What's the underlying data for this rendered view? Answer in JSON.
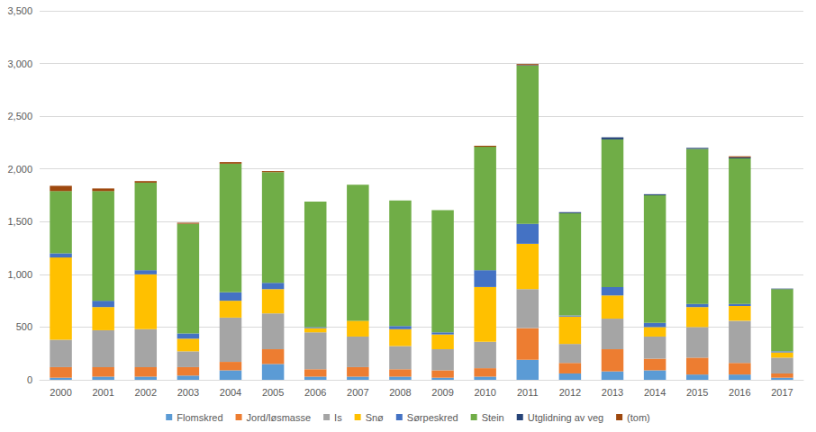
{
  "chart_data": {
    "type": "bar",
    "stacked": true,
    "grid": true,
    "legend": "bottom",
    "categories": [
      "2000",
      "2001",
      "2002",
      "2003",
      "2004",
      "2005",
      "2006",
      "2007",
      "2008",
      "2009",
      "2010",
      "2011",
      "2012",
      "2013",
      "2014",
      "2015",
      "2016",
      "2017"
    ],
    "ylim": [
      0,
      3500
    ],
    "yticks": [
      0,
      500,
      1000,
      1500,
      2000,
      2500,
      3000,
      3500
    ],
    "series": [
      {
        "name": "Flomskred",
        "color": "#5B9BD5",
        "values": [
          20,
          30,
          30,
          40,
          90,
          150,
          30,
          30,
          30,
          20,
          30,
          190,
          60,
          80,
          90,
          50,
          50,
          20
        ]
      },
      {
        "name": "Jord/løsmasse",
        "color": "#ED7D31",
        "values": [
          100,
          90,
          90,
          80,
          80,
          140,
          70,
          90,
          70,
          70,
          80,
          300,
          100,
          210,
          110,
          160,
          110,
          40
        ]
      },
      {
        "name": "Is",
        "color": "#A5A5A5",
        "values": [
          260,
          350,
          360,
          150,
          420,
          340,
          350,
          290,
          220,
          200,
          250,
          370,
          180,
          290,
          210,
          290,
          400,
          150
        ]
      },
      {
        "name": "Snø",
        "color": "#FFC000",
        "values": [
          780,
          220,
          520,
          120,
          160,
          230,
          40,
          150,
          160,
          140,
          520,
          430,
          260,
          220,
          90,
          190,
          140,
          50
        ]
      },
      {
        "name": "Sørpeskred",
        "color": "#4472C4",
        "values": [
          40,
          60,
          40,
          50,
          80,
          60,
          10,
          0,
          30,
          20,
          160,
          190,
          10,
          80,
          40,
          30,
          20,
          10
        ]
      },
      {
        "name": "Stein",
        "color": "#70AD47",
        "values": [
          590,
          1040,
          830,
          1040,
          1220,
          1050,
          1190,
          1290,
          1190,
          1160,
          1170,
          1500,
          970,
          1400,
          1210,
          1470,
          1380,
          590
        ]
      },
      {
        "name": "Utglidning av veg",
        "color": "#264478",
        "values": [
          0,
          0,
          0,
          0,
          0,
          0,
          0,
          0,
          0,
          0,
          0,
          5,
          10,
          20,
          10,
          10,
          10,
          5
        ]
      },
      {
        "name": "(tom)",
        "color": "#9E480E",
        "values": [
          50,
          25,
          15,
          10,
          15,
          10,
          0,
          0,
          0,
          0,
          10,
          10,
          0,
          0,
          0,
          0,
          10,
          0
        ]
      }
    ]
  }
}
